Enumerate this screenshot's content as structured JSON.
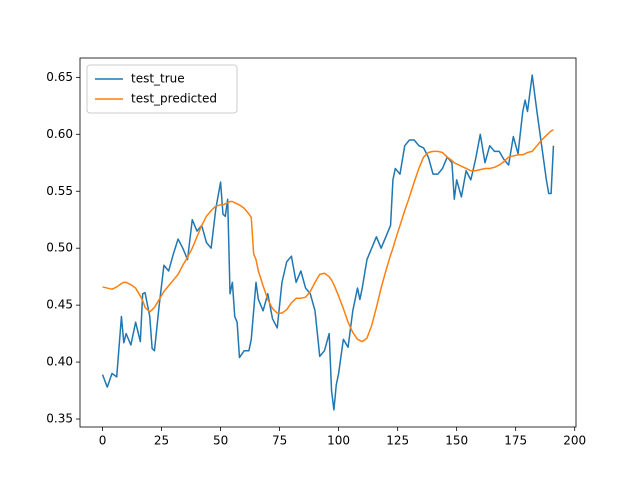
{
  "chart_data": {
    "type": "line",
    "x": [
      0,
      2,
      4,
      6,
      8,
      9,
      10,
      12,
      14,
      16,
      17,
      18,
      20,
      21,
      22,
      24,
      26,
      28,
      30,
      32,
      34,
      36,
      38,
      40,
      42,
      44,
      46,
      48,
      50,
      51,
      52,
      53,
      54,
      55,
      56,
      57,
      58,
      60,
      62,
      63,
      64,
      65,
      66,
      68,
      70,
      72,
      74,
      76,
      78,
      80,
      82,
      84,
      86,
      88,
      90,
      92,
      94,
      96,
      97,
      98,
      99,
      100,
      102,
      104,
      106,
      108,
      109,
      110,
      112,
      114,
      116,
      118,
      120,
      122,
      123,
      124,
      126,
      128,
      130,
      132,
      134,
      136,
      138,
      140,
      142,
      144,
      146,
      148,
      149,
      150,
      152,
      154,
      156,
      158,
      160,
      162,
      164,
      166,
      168,
      170,
      172,
      174,
      176,
      178,
      179,
      180,
      182,
      184,
      186,
      188,
      189,
      190,
      191
    ],
    "series": [
      {
        "name": "test_true",
        "color": "#1f77b4",
        "values": [
          0.389,
          0.378,
          0.39,
          0.387,
          0.44,
          0.417,
          0.425,
          0.415,
          0.435,
          0.418,
          0.46,
          0.461,
          0.44,
          0.412,
          0.41,
          0.45,
          0.485,
          0.48,
          0.495,
          0.508,
          0.5,
          0.49,
          0.525,
          0.515,
          0.52,
          0.505,
          0.5,
          0.535,
          0.558,
          0.53,
          0.528,
          0.543,
          0.46,
          0.47,
          0.44,
          0.435,
          0.404,
          0.41,
          0.41,
          0.42,
          0.445,
          0.47,
          0.455,
          0.445,
          0.46,
          0.438,
          0.43,
          0.47,
          0.488,
          0.493,
          0.47,
          0.48,
          0.465,
          0.46,
          0.445,
          0.405,
          0.41,
          0.425,
          0.375,
          0.358,
          0.38,
          0.39,
          0.42,
          0.413,
          0.445,
          0.465,
          0.455,
          0.465,
          0.49,
          0.5,
          0.51,
          0.5,
          0.51,
          0.52,
          0.56,
          0.57,
          0.565,
          0.59,
          0.595,
          0.595,
          0.59,
          0.588,
          0.58,
          0.565,
          0.565,
          0.57,
          0.58,
          0.575,
          0.543,
          0.56,
          0.545,
          0.568,
          0.56,
          0.578,
          0.6,
          0.575,
          0.59,
          0.585,
          0.585,
          0.578,
          0.573,
          0.598,
          0.583,
          0.62,
          0.63,
          0.62,
          0.652,
          0.62,
          0.59,
          0.56,
          0.548,
          0.548,
          0.59
        ]
      },
      {
        "name": "test_predicted",
        "color": "#ff7f0e",
        "values": [
          0.466,
          0.465,
          0.464,
          0.466,
          0.469,
          0.47,
          0.47,
          0.468,
          0.465,
          0.458,
          0.454,
          0.448,
          0.444,
          0.446,
          0.448,
          0.455,
          0.462,
          0.467,
          0.472,
          0.477,
          0.485,
          0.492,
          0.5,
          0.51,
          0.52,
          0.528,
          0.533,
          0.537,
          0.538,
          0.538,
          0.539,
          0.54,
          0.541,
          0.541,
          0.54,
          0.539,
          0.538,
          0.535,
          0.53,
          0.527,
          0.495,
          0.49,
          0.48,
          0.467,
          0.455,
          0.447,
          0.443,
          0.443,
          0.446,
          0.452,
          0.456,
          0.456,
          0.457,
          0.462,
          0.47,
          0.477,
          0.478,
          0.475,
          0.472,
          0.468,
          0.463,
          0.458,
          0.447,
          0.435,
          0.426,
          0.42,
          0.419,
          0.418,
          0.421,
          0.432,
          0.448,
          0.465,
          0.48,
          0.494,
          0.5,
          0.507,
          0.52,
          0.533,
          0.545,
          0.558,
          0.57,
          0.58,
          0.584,
          0.585,
          0.585,
          0.584,
          0.58,
          0.577,
          0.575,
          0.574,
          0.572,
          0.57,
          0.568,
          0.568,
          0.569,
          0.57,
          0.57,
          0.571,
          0.573,
          0.576,
          0.58,
          0.581,
          0.582,
          0.582,
          0.583,
          0.584,
          0.585,
          0.59,
          0.595,
          0.599,
          0.601,
          0.603,
          0.604
        ]
      }
    ],
    "xlim": [
      -9.55,
      200.55
    ],
    "ylim": [
      0.343,
      0.667
    ],
    "xticks": [
      0,
      25,
      50,
      75,
      100,
      125,
      150,
      175,
      200
    ],
    "yticks": [
      0.35,
      {
        "value": 0.4,
        "label": "0.40"
      },
      0.45,
      {
        "value": 0.5,
        "label": "0.50"
      },
      0.55,
      {
        "value": 0.6,
        "label": "0.60"
      },
      0.65
    ],
    "grid": false,
    "legend": "upper left"
  }
}
